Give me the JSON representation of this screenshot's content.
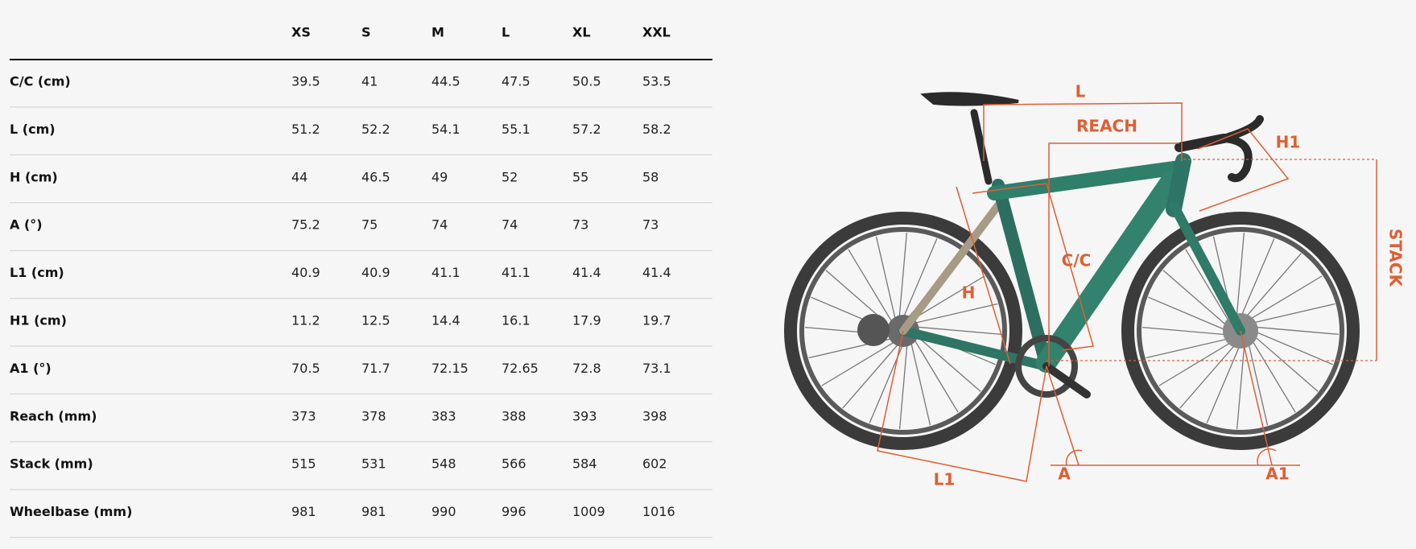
{
  "table": {
    "columns": [
      "XS",
      "S",
      "M",
      "L",
      "XL",
      "XXL"
    ],
    "rows": [
      {
        "label": "C/C (cm)",
        "values": [
          "39.5",
          "41",
          "44.5",
          "47.5",
          "50.5",
          "53.5"
        ]
      },
      {
        "label": "L (cm)",
        "values": [
          "51.2",
          "52.2",
          "54.1",
          "55.1",
          "57.2",
          "58.2"
        ]
      },
      {
        "label": "H (cm)",
        "values": [
          "44",
          "46.5",
          "49",
          "52",
          "55",
          "58"
        ]
      },
      {
        "label": "A (°)",
        "values": [
          "75.2",
          "75",
          "74",
          "74",
          "73",
          "73"
        ]
      },
      {
        "label": "L1 (cm)",
        "values": [
          "40.9",
          "40.9",
          "41.1",
          "41.1",
          "41.4",
          "41.4"
        ]
      },
      {
        "label": "H1 (cm)",
        "values": [
          "11.2",
          "12.5",
          "14.4",
          "16.1",
          "17.9",
          "19.7"
        ]
      },
      {
        "label": "A1 (°)",
        "values": [
          "70.5",
          "71.7",
          "72.15",
          "72.65",
          "72.8",
          "73.1"
        ]
      },
      {
        "label": "Reach (mm)",
        "values": [
          "373",
          "378",
          "383",
          "388",
          "393",
          "398"
        ]
      },
      {
        "label": "Stack (mm)",
        "values": [
          "515",
          "531",
          "548",
          "566",
          "584",
          "602"
        ]
      },
      {
        "label": "Wheelbase (mm)",
        "values": [
          "981",
          "981",
          "990",
          "996",
          "1009",
          "1016"
        ]
      }
    ]
  },
  "diagram": {
    "labels": {
      "l": "L",
      "reach": "REACH",
      "h1": "H1",
      "stack": "STACK",
      "cc": "C/C",
      "h": "H",
      "l1": "L1",
      "a": "A",
      "a1": "A1"
    }
  }
}
